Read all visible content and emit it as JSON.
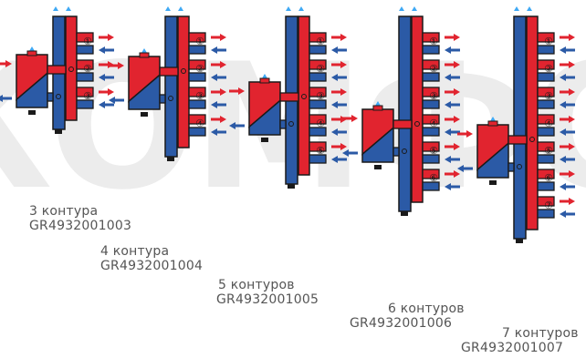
{
  "watermark": {
    "text": "КОМФО",
    "color": "#ececec"
  },
  "colors": {
    "hot": "#e1242f",
    "cold": "#2b5aa6",
    "outline": "#1a1a1a",
    "air": "#3fa9f5",
    "caption": "#555555"
  },
  "assemblies": [
    {
      "circuits": 3,
      "caption": "3 контура",
      "code": "GR4932001003",
      "numbers": [
        "①",
        "②",
        "③"
      ]
    },
    {
      "circuits": 4,
      "caption": "4 контура",
      "code": "GR4932001004",
      "numbers": [
        "①",
        "②",
        "③",
        "④"
      ]
    },
    {
      "circuits": 5,
      "caption": "5 контуров",
      "code": "GR4932001005",
      "numbers": [
        "①",
        "②",
        "③",
        "④",
        "⑤"
      ]
    },
    {
      "circuits": 6,
      "caption": "6 контуров",
      "code": "GR4932001006",
      "numbers": [
        "①",
        "②",
        "③",
        "④",
        "⑤",
        "⑥"
      ]
    },
    {
      "circuits": 7,
      "caption": "7 контуров",
      "code": "GR4932001007",
      "numbers": [
        "①",
        "②",
        "③",
        "④",
        "⑤",
        "⑥",
        "⑦"
      ]
    }
  ]
}
